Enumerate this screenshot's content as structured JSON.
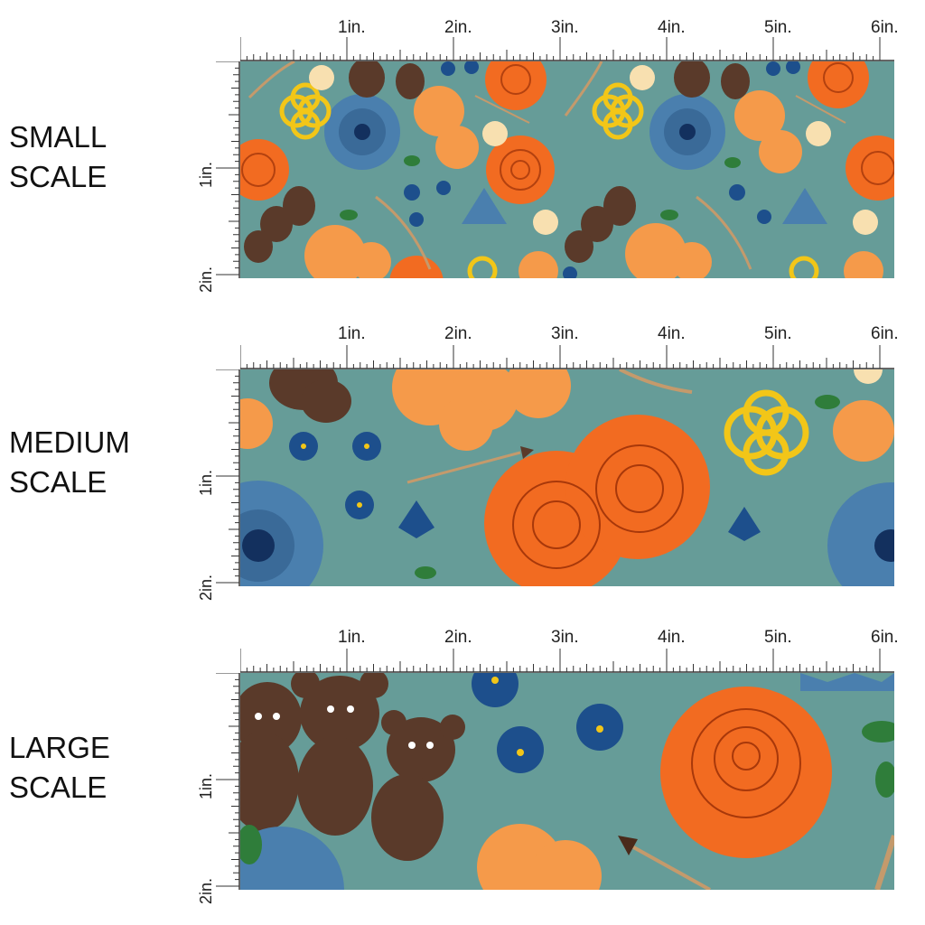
{
  "scales": [
    {
      "id": "small",
      "lines": [
        "SMALL",
        "SCALE"
      ]
    },
    {
      "id": "medium",
      "lines": [
        "MEDIUM",
        "SCALE"
      ]
    },
    {
      "id": "large",
      "lines": [
        "LARGE",
        "SCALE"
      ]
    }
  ],
  "ruler": {
    "top_labels": [
      "1in.",
      "2in.",
      "3in.",
      "4in.",
      "5in.",
      "6in."
    ],
    "side_labels": [
      "1in.",
      "2in."
    ]
  },
  "colors": {
    "background": "#669c98",
    "rose_orange": "#f26b21",
    "marigold": "#f59a4a",
    "blue_flower": "#1d4f8c",
    "dahlia_blue": "#4a7fae",
    "bear_brown": "#5a3a2a",
    "celtic_knot": "#f2c618",
    "lily": "#f8e0b0",
    "leaf": "#2f7d3a"
  },
  "icons": [
    "rose-icon",
    "marigold-icon",
    "forget-me-not-icon",
    "dahlia-icon",
    "bear-icon",
    "celtic-knot-icon",
    "lily-icon",
    "bow-icon",
    "arrow-icon"
  ]
}
